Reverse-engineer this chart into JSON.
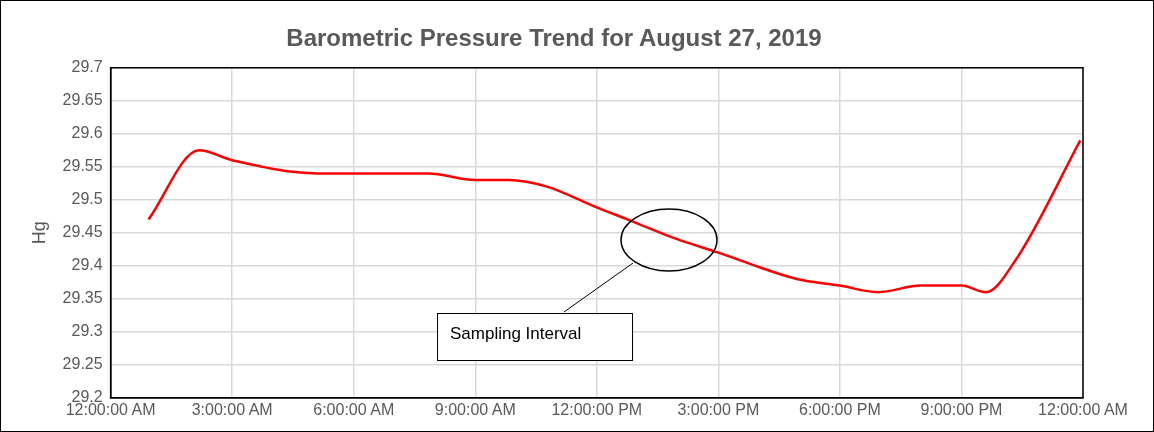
{
  "chart_data": {
    "type": "line",
    "title": "Barometric Pressure Trend for August 27, 2019",
    "ylabel": "Hg",
    "annotations": [
      "Sampling Interval"
    ],
    "x": [
      "2019-08-27T00:56",
      "2019-08-27T02:11",
      "2019-08-27T03:00",
      "2019-08-27T05:05",
      "2019-08-27T07:50",
      "2019-08-27T09:00",
      "2019-08-27T09:46",
      "2019-08-27T10:46",
      "2019-08-27T11:56",
      "2019-08-27T12:46",
      "2019-08-27T14:00",
      "2019-08-27T15:00",
      "2019-08-27T16:56",
      "2019-08-27T18:00",
      "2019-08-27T18:56",
      "2019-08-27T20:00",
      "2019-08-27T21:00",
      "2019-08-27T21:36",
      "2019-08-27T22:21",
      "2019-08-27T23:56"
    ],
    "series": [
      {
        "color": "#ff0000",
        "values": [
          29.47,
          29.575,
          29.56,
          29.54,
          29.54,
          29.53,
          29.53,
          29.52,
          29.49,
          29.47,
          29.44,
          29.42,
          29.38,
          29.37,
          29.36,
          29.37,
          29.37,
          29.36,
          29.41,
          29.59
        ]
      }
    ],
    "xlim": [
      "2019-08-27T00:00",
      "2019-08-28T00:00"
    ],
    "xticks": [
      {
        "value": "2019-08-27T00:00",
        "label": "12:00:00 AM"
      },
      {
        "value": "2019-08-27T03:00",
        "label": "3:00:00 AM"
      },
      {
        "value": "2019-08-27T06:00",
        "label": "6:00:00 AM"
      },
      {
        "value": "2019-08-27T09:00",
        "label": "9:00:00 AM"
      },
      {
        "value": "2019-08-27T12:00",
        "label": "12:00:00 PM"
      },
      {
        "value": "2019-08-27T15:00",
        "label": "3:00:00 PM"
      },
      {
        "value": "2019-08-27T18:00",
        "label": "6:00:00 PM"
      },
      {
        "value": "2019-08-27T21:00",
        "label": "9:00:00 PM"
      },
      {
        "value": "2019-08-28T00:00",
        "label": "12:00:00 AM"
      }
    ],
    "ylim": [
      29.2,
      29.7
    ],
    "yticks": [
      29.2,
      29.25,
      29.3,
      29.35,
      29.4,
      29.45,
      29.5,
      29.55,
      29.6,
      29.65,
      29.7
    ],
    "grid": true,
    "legend": false,
    "marker": "none",
    "line_style": "solid"
  }
}
